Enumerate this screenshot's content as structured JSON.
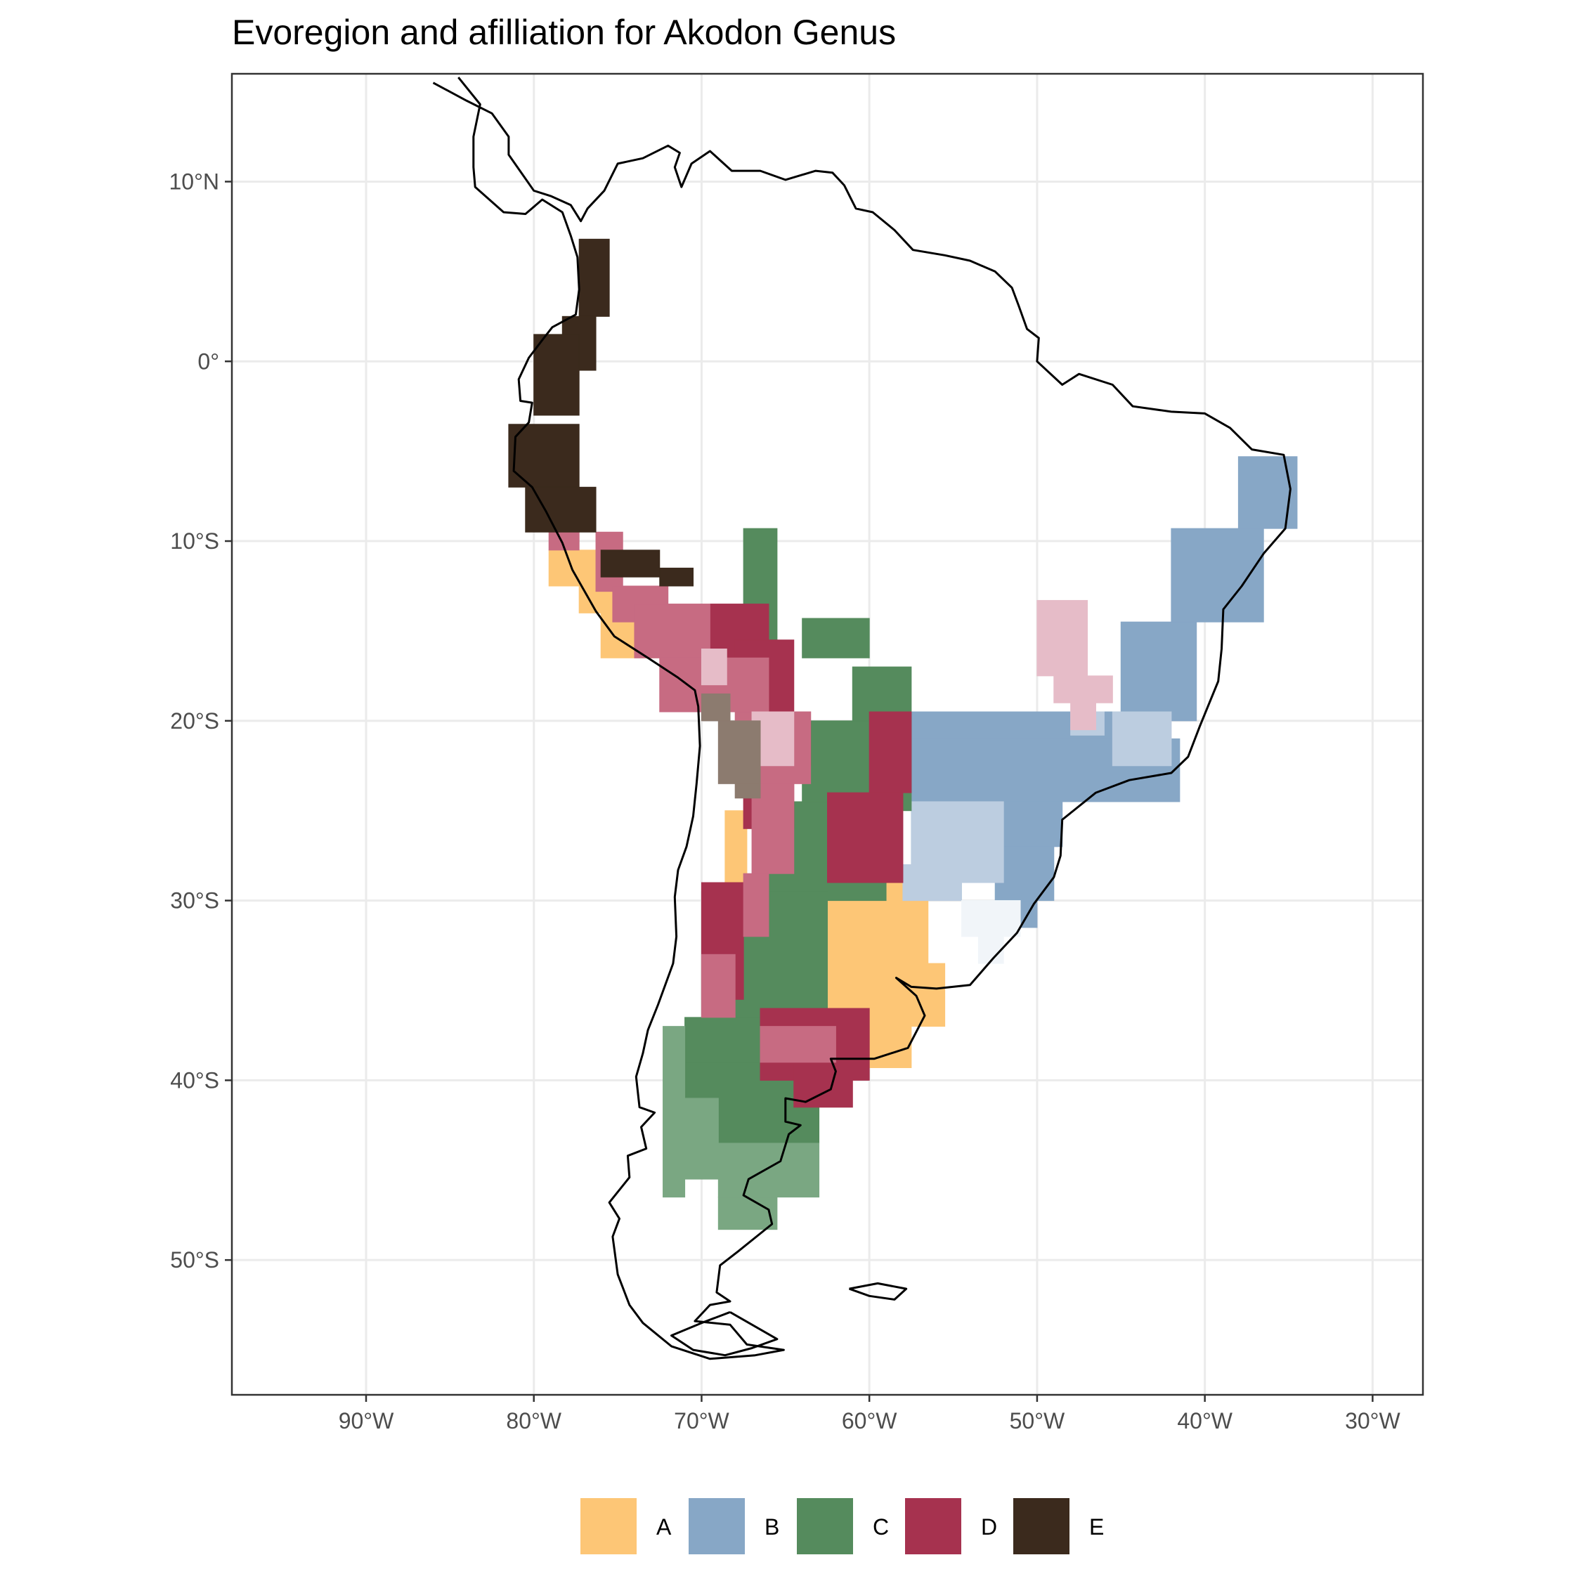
{
  "title": "Evoregion and afilliation for Akodon Genus",
  "map": {
    "lon_range": [
      -98,
      -27
    ],
    "lat_range": [
      -57.5,
      16
    ],
    "lon_ticks": [
      {
        "value": -90,
        "label": "90°W"
      },
      {
        "value": -80,
        "label": "80°W"
      },
      {
        "value": -70,
        "label": "70°W"
      },
      {
        "value": -60,
        "label": "60°W"
      },
      {
        "value": -50,
        "label": "50°W"
      },
      {
        "value": -40,
        "label": "40°W"
      },
      {
        "value": -30,
        "label": "30°W"
      }
    ],
    "lat_ticks": [
      {
        "value": 10,
        "label": "10°N"
      },
      {
        "value": 0,
        "label": "0°"
      },
      {
        "value": -10,
        "label": "10°S"
      },
      {
        "value": -20,
        "label": "20°S"
      },
      {
        "value": -30,
        "label": "30°S"
      },
      {
        "value": -40,
        "label": "40°S"
      },
      {
        "value": -50,
        "label": "50°S"
      }
    ],
    "grid": true,
    "coastline": [
      [
        [
          -86,
          15.5
        ],
        [
          -84,
          14.5
        ],
        [
          -82.5,
          13.8
        ],
        [
          -81.5,
          12.5
        ],
        [
          -81.5,
          11.5
        ],
        [
          -80,
          9.5
        ],
        [
          -79,
          9.2
        ],
        [
          -77.8,
          8.7
        ],
        [
          -77.2,
          7.8
        ],
        [
          -76.8,
          8.5
        ],
        [
          -75.8,
          9.5
        ],
        [
          -75,
          11
        ],
        [
          -73.5,
          11.3
        ],
        [
          -72,
          12
        ],
        [
          -71.3,
          11.6
        ],
        [
          -71.6,
          10.8
        ],
        [
          -71.2,
          9.7
        ],
        [
          -70.6,
          11
        ],
        [
          -69.5,
          11.7
        ],
        [
          -68.2,
          10.6
        ],
        [
          -66.5,
          10.6
        ],
        [
          -65,
          10.1
        ],
        [
          -63.2,
          10.6
        ],
        [
          -62.2,
          10.5
        ],
        [
          -61.5,
          9.8
        ],
        [
          -60.8,
          8.5
        ],
        [
          -59.8,
          8.3
        ],
        [
          -58.5,
          7.3
        ],
        [
          -57.4,
          6.2
        ],
        [
          -55.5,
          5.9
        ],
        [
          -54,
          5.6
        ],
        [
          -52.5,
          5
        ],
        [
          -51.5,
          4.1
        ],
        [
          -51.1,
          3.1
        ],
        [
          -50.6,
          1.8
        ],
        [
          -49.9,
          1.3
        ],
        [
          -50,
          0
        ],
        [
          -48.5,
          -1.3
        ],
        [
          -47.5,
          -0.7
        ],
        [
          -45.5,
          -1.3
        ],
        [
          -44.3,
          -2.5
        ],
        [
          -42,
          -2.8
        ],
        [
          -40,
          -2.9
        ],
        [
          -38.5,
          -3.7
        ],
        [
          -37.2,
          -4.9
        ],
        [
          -35.3,
          -5.2
        ],
        [
          -34.9,
          -7.1
        ],
        [
          -35.2,
          -9.3
        ],
        [
          -36.5,
          -10.7
        ],
        [
          -37.8,
          -12.5
        ],
        [
          -38.9,
          -13.8
        ],
        [
          -39,
          -16
        ],
        [
          -39.2,
          -17.8
        ],
        [
          -40.3,
          -20.3
        ],
        [
          -41,
          -22
        ],
        [
          -42,
          -22.9
        ],
        [
          -44.5,
          -23.3
        ],
        [
          -46.5,
          -24
        ],
        [
          -48.5,
          -25.5
        ],
        [
          -48.6,
          -27.5
        ],
        [
          -49,
          -28.7
        ],
        [
          -50.2,
          -30.2
        ],
        [
          -51.2,
          -31.8
        ],
        [
          -52.6,
          -33.2
        ],
        [
          -54,
          -34.7
        ],
        [
          -56,
          -34.9
        ],
        [
          -57.5,
          -34.8
        ],
        [
          -58.4,
          -34.3
        ],
        [
          -57.2,
          -35.3
        ],
        [
          -56.7,
          -36.4
        ],
        [
          -57.7,
          -38.2
        ],
        [
          -59.7,
          -38.8
        ],
        [
          -62.3,
          -38.8
        ],
        [
          -62,
          -39.5
        ],
        [
          -62.3,
          -40.5
        ],
        [
          -63.8,
          -41.2
        ],
        [
          -65,
          -41
        ],
        [
          -65,
          -42.3
        ],
        [
          -64.1,
          -42.5
        ],
        [
          -64.8,
          -43
        ],
        [
          -65.3,
          -44.5
        ],
        [
          -67.2,
          -45.5
        ],
        [
          -67.5,
          -46.4
        ],
        [
          -66,
          -47.2
        ],
        [
          -65.8,
          -48
        ],
        [
          -67.8,
          -49.5
        ],
        [
          -68.9,
          -50.3
        ],
        [
          -69.1,
          -51.8
        ],
        [
          -68.3,
          -52.3
        ],
        [
          -69.5,
          -52.5
        ],
        [
          -70.4,
          -53.4
        ],
        [
          -68.3,
          -53.6
        ],
        [
          -67.3,
          -54.7
        ],
        [
          -65.1,
          -55
        ],
        [
          -66.8,
          -55.3
        ],
        [
          -69.5,
          -55.5
        ],
        [
          -71.8,
          -54.8
        ],
        [
          -73.5,
          -53.5
        ],
        [
          -74.3,
          -52.5
        ],
        [
          -75,
          -50.8
        ],
        [
          -75.3,
          -48.7
        ],
        [
          -74.9,
          -47.7
        ],
        [
          -75.5,
          -46.8
        ],
        [
          -74.3,
          -45.4
        ],
        [
          -74.4,
          -44.2
        ],
        [
          -73.3,
          -43.8
        ],
        [
          -73.6,
          -42.6
        ],
        [
          -72.8,
          -41.8
        ],
        [
          -73.7,
          -41.5
        ],
        [
          -73.9,
          -39.8
        ],
        [
          -73.5,
          -38.5
        ],
        [
          -73.2,
          -37.2
        ],
        [
          -72.6,
          -35.8
        ],
        [
          -71.7,
          -33.5
        ],
        [
          -71.5,
          -32
        ],
        [
          -71.6,
          -29.8
        ],
        [
          -71.4,
          -28.3
        ],
        [
          -70.9,
          -27
        ],
        [
          -70.5,
          -25.3
        ],
        [
          -70.3,
          -23.5
        ],
        [
          -70.1,
          -21.4
        ],
        [
          -70.2,
          -19.2
        ],
        [
          -70.4,
          -18.3
        ],
        [
          -71.4,
          -17.6
        ],
        [
          -73.2,
          -16.5
        ],
        [
          -75.2,
          -15.3
        ],
        [
          -76.3,
          -13.9
        ],
        [
          -77.7,
          -11.6
        ],
        [
          -78.3,
          -10.1
        ],
        [
          -79.3,
          -8.3
        ],
        [
          -80.1,
          -7
        ],
        [
          -81.2,
          -6.1
        ],
        [
          -81.1,
          -4.2
        ],
        [
          -80.3,
          -3.4
        ],
        [
          -80.1,
          -2.3
        ],
        [
          -80.8,
          -2.2
        ],
        [
          -80.9,
          -1
        ],
        [
          -80.3,
          0.2
        ],
        [
          -79.4,
          1.3
        ],
        [
          -78.9,
          1.9
        ],
        [
          -77.5,
          2.6
        ],
        [
          -77.3,
          4
        ],
        [
          -77.4,
          5.8
        ],
        [
          -77.8,
          7
        ],
        [
          -78.3,
          8.3
        ],
        [
          -79.5,
          9
        ],
        [
          -80.5,
          8.2
        ],
        [
          -81.8,
          8.3
        ],
        [
          -83.5,
          9.7
        ],
        [
          -83.6,
          10.8
        ],
        [
          -83.6,
          12.5
        ],
        [
          -83.2,
          14.3
        ],
        [
          -84.5,
          15.8
        ]
      ],
      [
        [
          -68.3,
          -52.9
        ],
        [
          -65.5,
          -54.4
        ],
        [
          -67,
          -54.9
        ],
        [
          -68.6,
          -55.3
        ],
        [
          -70.5,
          -55
        ],
        [
          -71.8,
          -54.2
        ],
        [
          -70,
          -53.5
        ],
        [
          -68.3,
          -52.9
        ]
      ],
      [
        [
          -61.2,
          -51.6
        ],
        [
          -59.5,
          -51.3
        ],
        [
          -57.8,
          -51.6
        ],
        [
          -58.5,
          -52.2
        ],
        [
          -60,
          -52
        ],
        [
          -61.2,
          -51.6
        ]
      ]
    ]
  },
  "regions": [
    {
      "id": "A",
      "color": "#fdc676",
      "cells": [
        [
          -79.1,
          -10.5,
          -76.3,
          -12.5
        ],
        [
          -77.3,
          -12.5,
          -74.7,
          -14
        ],
        [
          -76.0,
          -14,
          -72.3,
          -16.5
        ],
        [
          -68.6,
          -25,
          -67.3,
          -29.0
        ],
        [
          -63.0,
          -29,
          -56.5,
          -33.5
        ],
        [
          -63.5,
          -33.5,
          -55.5,
          -37
        ],
        [
          -62.5,
          -37,
          -57.5,
          -39.3
        ]
      ]
    },
    {
      "id": "B",
      "color": "#87a7c6",
      "cells": [
        [
          -38.0,
          -5.3,
          -34.5,
          -9.3
        ],
        [
          -42.0,
          -9.3,
          -36.5,
          -14.5
        ],
        [
          -45.0,
          -14.5,
          -40.5,
          -20.0
        ],
        [
          -57.5,
          -19.5,
          -43.5,
          -21.0
        ],
        [
          -57.5,
          -21.0,
          -41.5,
          -24.5
        ],
        [
          -54.5,
          -24.5,
          -48.5,
          -27.0
        ],
        [
          -52.5,
          -27.0,
          -49.0,
          -30.0
        ],
        [
          -51.5,
          -30.0,
          -50.0,
          -31.5
        ]
      ]
    },
    {
      "id": "B-light",
      "color": "#bccde0",
      "cells": [
        [
          -57.5,
          -24.5,
          -52.0,
          -29.0
        ],
        [
          -58.0,
          -28.0,
          -54.5,
          -30.0
        ],
        [
          -45.5,
          -19.5,
          -42.0,
          -22.5
        ],
        [
          -48.0,
          -19.5,
          -46.0,
          -20.8
        ]
      ]
    },
    {
      "id": "B-faint",
      "color": "#f1f5f9",
      "cells": [
        [
          -54.5,
          -30.0,
          -51.0,
          -32.0
        ],
        [
          -53.5,
          -32.0,
          -52.0,
          -33.5
        ]
      ]
    },
    {
      "id": "C",
      "color": "#558b5d",
      "cells": [
        [
          -67.5,
          -9.3,
          -65.5,
          -16.5
        ],
        [
          -64.0,
          -14.3,
          -60.0,
          -16.5
        ],
        [
          -61.0,
          -17.0,
          -57.5,
          -20.0
        ],
        [
          -64.0,
          -20.0,
          -57.5,
          -25.0
        ],
        [
          -66.0,
          -24.5,
          -59.0,
          -30.0
        ],
        [
          -70.0,
          -29.5,
          -62.5,
          -36.5
        ],
        [
          -71.0,
          -36.5,
          -64.0,
          -39.0
        ],
        [
          -71.0,
          -39.0,
          -63.0,
          -43.5
        ]
      ]
    },
    {
      "id": "C-light",
      "color": "#7aa782",
      "cells": [
        [
          -72.3,
          -37.0,
          -71.0,
          -46.5
        ],
        [
          -71.0,
          -41.0,
          -69.0,
          -45.5
        ],
        [
          -69.0,
          -43.5,
          -63.0,
          -46.5
        ],
        [
          -69.0,
          -46.5,
          -65.5,
          -48.3
        ]
      ]
    },
    {
      "id": "D",
      "color": "#a6324f",
      "cells": [
        [
          -69.5,
          -13.5,
          -66.0,
          -17.0
        ],
        [
          -68.0,
          -15.5,
          -64.5,
          -19.5
        ],
        [
          -65.5,
          -19.5,
          -63.5,
          -22.5
        ],
        [
          -67.5,
          -22.5,
          -64.5,
          -26.0
        ],
        [
          -70.0,
          -29.0,
          -67.5,
          -35.5
        ],
        [
          -66.5,
          -36.0,
          -60.0,
          -40.0
        ],
        [
          -64.5,
          -39.0,
          -61.0,
          -41.5
        ],
        [
          -62.5,
          -24.0,
          -58.0,
          -29.0
        ],
        [
          -60.0,
          -19.5,
          -57.5,
          -24.0
        ]
      ]
    },
    {
      "id": "D-medium",
      "color": "#c76b82",
      "cells": [
        [
          -79.1,
          -8.5,
          -77.3,
          -10.5
        ],
        [
          -76.3,
          -9.5,
          -74.7,
          -12.8
        ],
        [
          -75.3,
          -12.5,
          -72.0,
          -14.5
        ],
        [
          -74.0,
          -13.5,
          -69.5,
          -16.5
        ],
        [
          -72.5,
          -16.5,
          -66.0,
          -19.5
        ],
        [
          -68.0,
          -19.5,
          -63.5,
          -23.5
        ],
        [
          -67.0,
          -23.5,
          -64.5,
          -28.5
        ],
        [
          -67.5,
          -28.5,
          -66.0,
          -32.0
        ],
        [
          -70.0,
          -33.0,
          -68.0,
          -36.5
        ],
        [
          -66.5,
          -37.0,
          -62.0,
          -39.0
        ]
      ]
    },
    {
      "id": "D-light",
      "color": "#e6bcc8",
      "cells": [
        [
          -50.0,
          -13.3,
          -47.0,
          -17.5
        ],
        [
          -49.0,
          -17.5,
          -45.5,
          -19.0
        ],
        [
          -48.0,
          -19.0,
          -46.5,
          -20.5
        ],
        [
          -67.0,
          -19.5,
          -64.5,
          -22.5
        ],
        [
          -70.0,
          -16.0,
          -68.5,
          -18.0
        ]
      ]
    },
    {
      "id": "E",
      "color": "#3b2a1d",
      "cells": [
        [
          -77.3,
          2.5,
          -75.5,
          6.8
        ],
        [
          -78.3,
          -0.5,
          -76.3,
          2.5
        ],
        [
          -80.0,
          -3.0,
          -77.3,
          1.5
        ],
        [
          -81.5,
          -3.5,
          -77.3,
          -7.0
        ],
        [
          -80.5,
          -7.0,
          -76.3,
          -9.5
        ],
        [
          -76.0,
          -10.5,
          -72.5,
          -12.0
        ],
        [
          -72.5,
          -11.5,
          -70.5,
          -12.5
        ]
      ]
    },
    {
      "id": "E-light",
      "color": "#8c7b6f",
      "cells": [
        [
          -70.0,
          -18.5,
          -68.3,
          -20.0
        ],
        [
          -69.0,
          -20.0,
          -66.5,
          -23.5
        ],
        [
          -68.0,
          -23.5,
          -66.5,
          -24.3
        ]
      ]
    }
  ],
  "legend": {
    "position": "bottom",
    "items": [
      {
        "label": "A",
        "color": "#fdc676"
      },
      {
        "label": "B",
        "color": "#87a7c6"
      },
      {
        "label": "C",
        "color": "#558b5d"
      },
      {
        "label": "D",
        "color": "#a6324f"
      },
      {
        "label": "E",
        "color": "#3b2a1d"
      }
    ]
  }
}
